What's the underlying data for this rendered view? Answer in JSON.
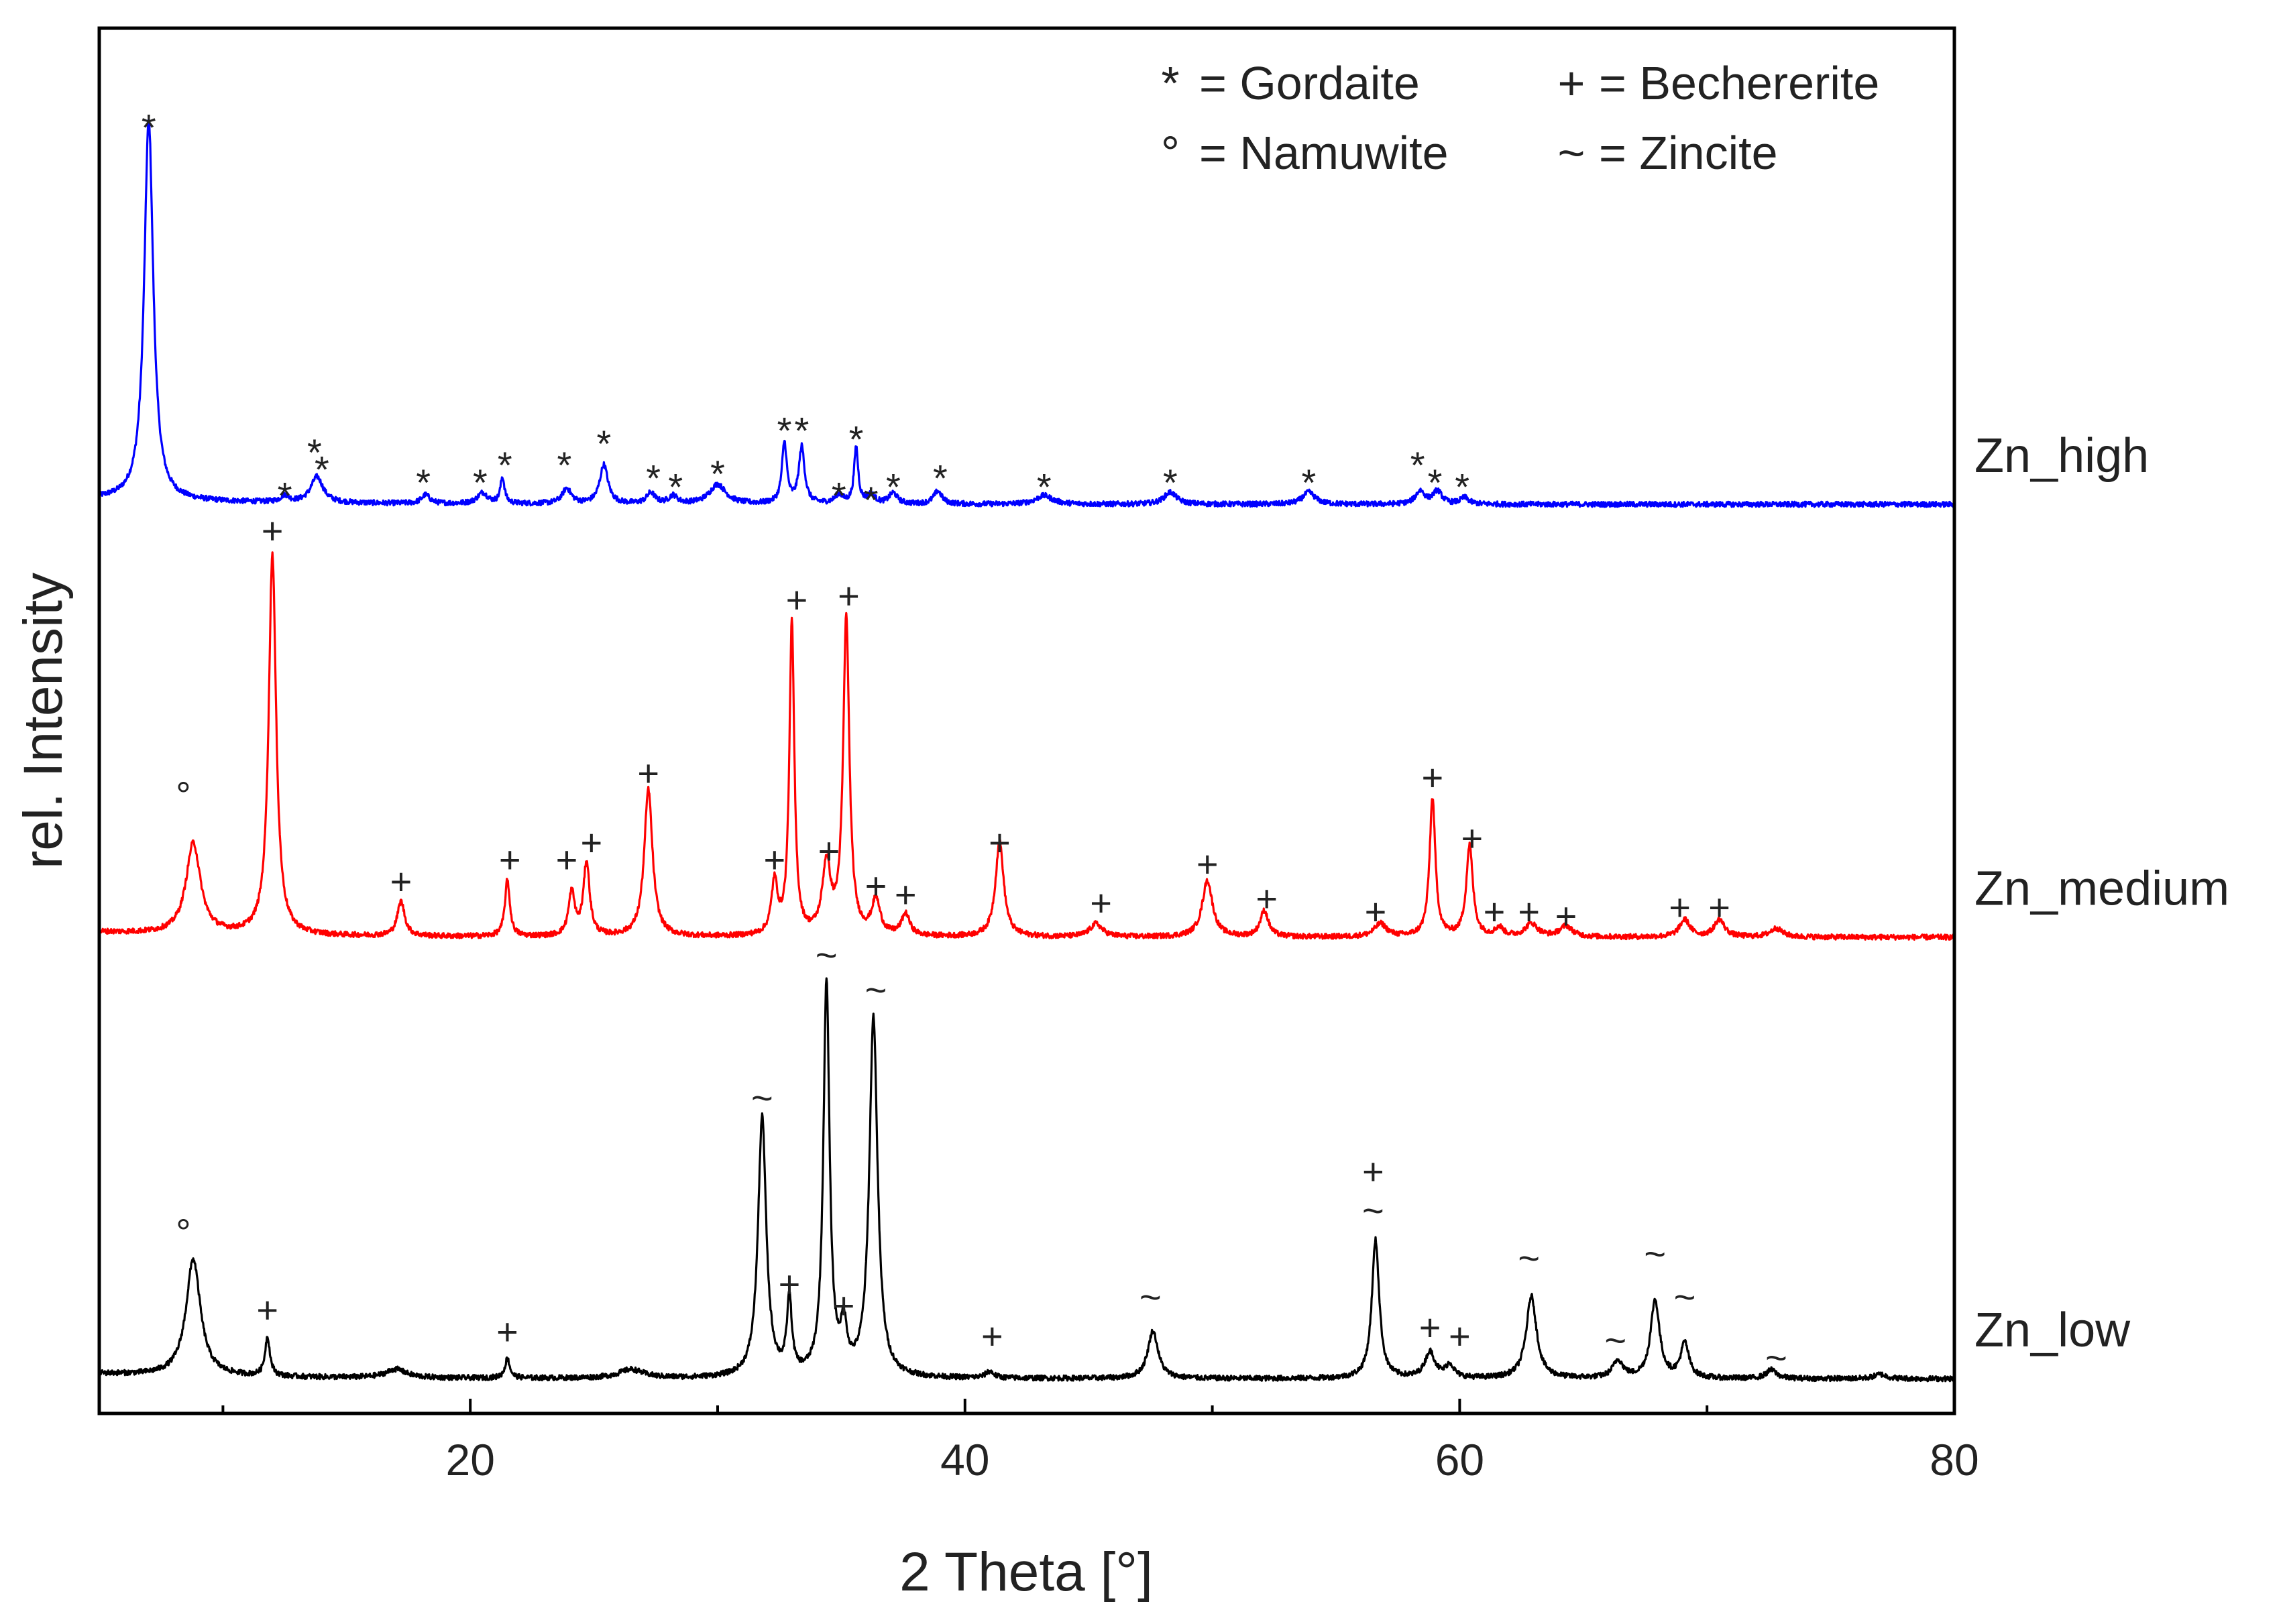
{
  "chart_data": {
    "type": "line",
    "title": "",
    "xlabel": "2 Theta [°]",
    "ylabel": "rel. Intensity",
    "xlim": [
      5,
      80
    ],
    "ylim": [
      0,
      3.2
    ],
    "xticks": [
      20,
      40,
      60,
      80
    ],
    "grid": false,
    "legend_placement": "top-right",
    "legend": [
      {
        "symbol": "*",
        "text": "= Gordaite"
      },
      {
        "symbol": "+",
        "text": "= Bechererite"
      },
      {
        "symbol": "°",
        "text": "= Namuwite"
      },
      {
        "symbol": "~",
        "text": "= Zincite"
      }
    ],
    "series": [
      {
        "name": "Zn_high",
        "label": "Zn_high",
        "color": "#0000ff",
        "baseline": 2.1,
        "peaks": [
          [
            7.0,
            0.88,
            0.22
          ],
          [
            12.5,
            0.015,
            0.2
          ],
          [
            13.8,
            0.06,
            0.3
          ],
          [
            18.2,
            0.02,
            0.2
          ],
          [
            20.5,
            0.025,
            0.25
          ],
          [
            21.3,
            0.06,
            0.1
          ],
          [
            23.9,
            0.035,
            0.22
          ],
          [
            25.4,
            0.09,
            0.2
          ],
          [
            27.3,
            0.025,
            0.2
          ],
          [
            28.2,
            0.018,
            0.2
          ],
          [
            30.0,
            0.045,
            0.4
          ],
          [
            32.7,
            0.14,
            0.12
          ],
          [
            33.4,
            0.13,
            0.14
          ],
          [
            34.9,
            0.02,
            0.2
          ],
          [
            35.6,
            0.13,
            0.1
          ],
          [
            36.2,
            0.02,
            0.2
          ],
          [
            37.1,
            0.025,
            0.2
          ],
          [
            38.9,
            0.03,
            0.2
          ],
          [
            43.2,
            0.02,
            0.4
          ],
          [
            48.3,
            0.028,
            0.3
          ],
          [
            53.9,
            0.028,
            0.3
          ],
          [
            58.4,
            0.03,
            0.22
          ],
          [
            59.1,
            0.03,
            0.22
          ],
          [
            60.2,
            0.015,
            0.2
          ]
        ],
        "annotations": [
          {
            "x": 7.0,
            "symbol": "*",
            "level": 2.99
          },
          {
            "x": 12.5,
            "symbol": "*",
            "level": 2.14
          },
          {
            "x": 13.7,
            "symbol": "*",
            "level": 2.24
          },
          {
            "x": 14.0,
            "symbol": "*",
            "level": 2.2
          },
          {
            "x": 18.1,
            "symbol": "*",
            "level": 2.17
          },
          {
            "x": 20.4,
            "symbol": "*",
            "level": 2.17
          },
          {
            "x": 21.4,
            "symbol": "*",
            "level": 2.21
          },
          {
            "x": 23.8,
            "symbol": "*",
            "level": 2.21
          },
          {
            "x": 25.4,
            "symbol": "*",
            "level": 2.26
          },
          {
            "x": 27.4,
            "symbol": "*",
            "level": 2.18
          },
          {
            "x": 28.3,
            "symbol": "*",
            "level": 2.16
          },
          {
            "x": 30.0,
            "symbol": "*",
            "level": 2.19
          },
          {
            "x": 32.7,
            "symbol": "*",
            "level": 2.29
          },
          {
            "x": 33.4,
            "symbol": "*",
            "level": 2.29
          },
          {
            "x": 34.9,
            "symbol": "*",
            "level": 2.14
          },
          {
            "x": 35.6,
            "symbol": "*",
            "level": 2.27
          },
          {
            "x": 36.2,
            "symbol": "*",
            "level": 2.13
          },
          {
            "x": 37.1,
            "symbol": "*",
            "level": 2.16
          },
          {
            "x": 39.0,
            "symbol": "*",
            "level": 2.18
          },
          {
            "x": 43.2,
            "symbol": "*",
            "level": 2.16
          },
          {
            "x": 48.3,
            "symbol": "*",
            "level": 2.17
          },
          {
            "x": 53.9,
            "symbol": "*",
            "level": 2.17
          },
          {
            "x": 58.3,
            "symbol": "*",
            "level": 2.21
          },
          {
            "x": 59.0,
            "symbol": "*",
            "level": 2.17
          },
          {
            "x": 60.1,
            "symbol": "*",
            "level": 2.16
          }
        ]
      },
      {
        "name": "Zn_medium",
        "label": "Zn_medium",
        "color": "#ff0000",
        "baseline": 1.1,
        "peaks": [
          [
            8.8,
            0.21,
            0.35
          ],
          [
            12.0,
            0.88,
            0.18
          ],
          [
            17.2,
            0.08,
            0.18
          ],
          [
            21.5,
            0.13,
            0.12
          ],
          [
            24.1,
            0.1,
            0.15
          ],
          [
            24.7,
            0.17,
            0.15
          ],
          [
            27.2,
            0.34,
            0.2
          ],
          [
            32.3,
            0.12,
            0.15
          ],
          [
            33.0,
            0.72,
            0.12
          ],
          [
            34.4,
            0.16,
            0.2
          ],
          [
            35.2,
            0.73,
            0.15
          ],
          [
            36.4,
            0.08,
            0.2
          ],
          [
            37.6,
            0.05,
            0.2
          ],
          [
            41.4,
            0.22,
            0.2
          ],
          [
            45.3,
            0.03,
            0.3
          ],
          [
            49.8,
            0.13,
            0.25
          ],
          [
            52.1,
            0.06,
            0.2
          ],
          [
            56.8,
            0.03,
            0.3
          ],
          [
            58.9,
            0.32,
            0.14
          ],
          [
            60.4,
            0.21,
            0.16
          ],
          [
            61.6,
            0.02,
            0.2
          ],
          [
            62.9,
            0.03,
            0.3
          ],
          [
            64.3,
            0.025,
            0.3
          ],
          [
            69.1,
            0.04,
            0.25
          ],
          [
            70.5,
            0.04,
            0.25
          ],
          [
            72.8,
            0.02,
            0.3
          ]
        ],
        "annotations": [
          {
            "x": 8.4,
            "symbol": "°",
            "level": 1.43
          },
          {
            "x": 12.0,
            "symbol": "+",
            "level": 2.04
          },
          {
            "x": 17.2,
            "symbol": "+",
            "level": 1.23
          },
          {
            "x": 21.6,
            "symbol": "+",
            "level": 1.28
          },
          {
            "x": 23.9,
            "symbol": "+",
            "level": 1.28
          },
          {
            "x": 24.9,
            "symbol": "+",
            "level": 1.32
          },
          {
            "x": 27.2,
            "symbol": "+",
            "level": 1.48
          },
          {
            "x": 32.3,
            "symbol": "+",
            "level": 1.28
          },
          {
            "x": 33.2,
            "symbol": "+",
            "level": 1.88
          },
          {
            "x": 34.5,
            "symbol": "+",
            "level": 1.3
          },
          {
            "x": 35.3,
            "symbol": "+",
            "level": 1.89
          },
          {
            "x": 36.4,
            "symbol": "+",
            "level": 1.22
          },
          {
            "x": 37.6,
            "symbol": "+",
            "level": 1.2
          },
          {
            "x": 41.4,
            "symbol": "+",
            "level": 1.32
          },
          {
            "x": 45.5,
            "symbol": "+",
            "level": 1.18
          },
          {
            "x": 49.8,
            "symbol": "+",
            "level": 1.27
          },
          {
            "x": 52.2,
            "symbol": "+",
            "level": 1.19
          },
          {
            "x": 56.6,
            "symbol": "+",
            "level": 1.16
          },
          {
            "x": 58.9,
            "symbol": "+",
            "level": 1.47
          },
          {
            "x": 60.5,
            "symbol": "+",
            "level": 1.33
          },
          {
            "x": 61.4,
            "symbol": "+",
            "level": 1.16
          },
          {
            "x": 62.8,
            "symbol": "+",
            "level": 1.16
          },
          {
            "x": 64.3,
            "symbol": "+",
            "level": 1.15
          },
          {
            "x": 68.9,
            "symbol": "+",
            "level": 1.17
          },
          {
            "x": 70.5,
            "symbol": "+",
            "level": 1.17
          }
        ]
      },
      {
        "name": "Zn_low",
        "label": "Zn_low",
        "color": "#000000",
        "baseline": 0.08,
        "peaks": [
          [
            8.8,
            0.27,
            0.35
          ],
          [
            11.8,
            0.09,
            0.12
          ],
          [
            17.0,
            0.02,
            0.5
          ],
          [
            21.5,
            0.045,
            0.12
          ],
          [
            26.5,
            0.02,
            0.6
          ],
          [
            31.8,
            0.6,
            0.2
          ],
          [
            32.9,
            0.17,
            0.12
          ],
          [
            34.4,
            0.91,
            0.15
          ],
          [
            35.1,
            0.1,
            0.15
          ],
          [
            36.3,
            0.83,
            0.2
          ],
          [
            41.0,
            0.015,
            0.2
          ],
          [
            47.6,
            0.11,
            0.25
          ],
          [
            56.6,
            0.32,
            0.18
          ],
          [
            58.8,
            0.06,
            0.25
          ],
          [
            59.6,
            0.03,
            0.2
          ],
          [
            62.9,
            0.19,
            0.25
          ],
          [
            66.4,
            0.04,
            0.25
          ],
          [
            67.9,
            0.18,
            0.22
          ],
          [
            69.1,
            0.08,
            0.2
          ],
          [
            72.6,
            0.02,
            0.25
          ],
          [
            77.0,
            0.01,
            0.3
          ]
        ],
        "annotations": [
          {
            "x": 8.4,
            "symbol": "°",
            "level": 0.42
          },
          {
            "x": 11.8,
            "symbol": "+",
            "level": 0.24
          },
          {
            "x": 21.5,
            "symbol": "+",
            "level": 0.19
          },
          {
            "x": 31.8,
            "symbol": "~",
            "level": 0.73
          },
          {
            "x": 32.9,
            "symbol": "+",
            "level": 0.3
          },
          {
            "x": 34.4,
            "symbol": "~",
            "level": 1.06
          },
          {
            "x": 35.1,
            "symbol": "+",
            "level": 0.25
          },
          {
            "x": 36.4,
            "symbol": "~",
            "level": 0.98
          },
          {
            "x": 41.1,
            "symbol": "+",
            "level": 0.18
          },
          {
            "x": 47.5,
            "symbol": "~",
            "level": 0.27
          },
          {
            "x": 56.5,
            "symbol": "+",
            "level": 0.56
          },
          {
            "x": 56.5,
            "symbol": "~",
            "level": 0.47
          },
          {
            "x": 58.8,
            "symbol": "+",
            "level": 0.2
          },
          {
            "x": 60.0,
            "symbol": "+",
            "level": 0.18
          },
          {
            "x": 62.8,
            "symbol": "~",
            "level": 0.36
          },
          {
            "x": 66.3,
            "symbol": "~",
            "level": 0.17
          },
          {
            "x": 67.9,
            "symbol": "~",
            "level": 0.37
          },
          {
            "x": 69.1,
            "symbol": "~",
            "level": 0.27
          },
          {
            "x": 72.8,
            "symbol": "~",
            "level": 0.13
          }
        ]
      }
    ]
  }
}
